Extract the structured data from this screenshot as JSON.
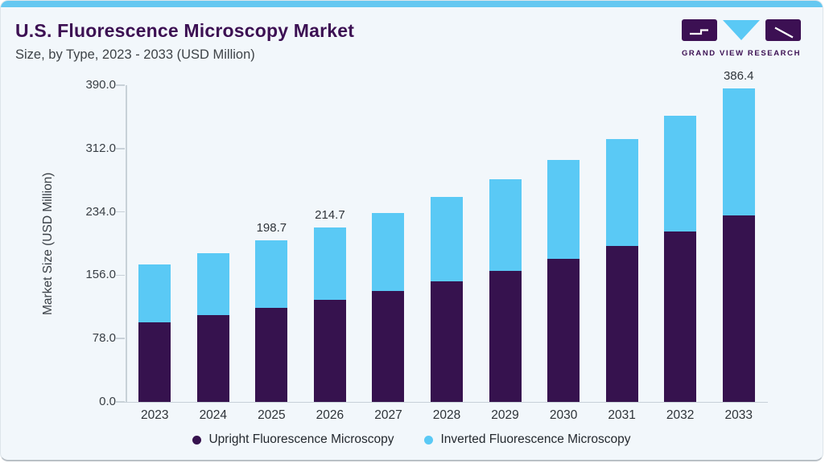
{
  "header": {
    "title": "U.S. Fluorescence Microscopy Market",
    "subtitle": "Size, by Type, 2023 - 2033 (USD Million)",
    "logo_text": "GRAND VIEW RESEARCH"
  },
  "colors": {
    "card_bg": "#f2f7fb",
    "top_accent": "#65c8f1",
    "title_text": "#3c1053",
    "subtitle_text": "#3e4347",
    "upright": "#36124e",
    "inverted": "#5ac9f5",
    "axis_line": "#c8d1d8",
    "tick_text": "#383e44",
    "logo_purple": "#3c1053",
    "logo_blue": "#5ac9f5"
  },
  "chart_data": {
    "type": "bar",
    "stacked": true,
    "title": "U.S. Fluorescence Microscopy Market Size, by Type, 2023 - 2033 (USD Million)",
    "categories": [
      "2023",
      "2024",
      "2025",
      "2026",
      "2027",
      "2028",
      "2029",
      "2030",
      "2031",
      "2032",
      "2033"
    ],
    "series": [
      {
        "name": "Upright Fluorescence Microscopy",
        "color": "#36124e",
        "values": [
          97.9,
          106.6,
          115.6,
          125.9,
          136.9,
          148.4,
          161.3,
          176.0,
          192.0,
          209.8,
          229.3
        ]
      },
      {
        "name": "Inverted Fluorescence Microscopy",
        "color": "#5ac9f5",
        "values": [
          71.6,
          76.6,
          83.1,
          88.8,
          95.3,
          104.0,
          112.5,
          121.9,
          131.5,
          142.8,
          157.1
        ]
      }
    ],
    "totals": [
      169.5,
      183.2,
      198.7,
      214.7,
      232.2,
      252.4,
      273.8,
      297.9,
      323.5,
      352.6,
      386.4
    ],
    "data_labels": {
      "2025": "198.7",
      "2026": "214.7",
      "2033": "386.4"
    },
    "xlabel": "",
    "ylabel": "Market Size (USD Million)",
    "yticks": [
      0,
      78,
      156,
      234,
      312,
      390
    ],
    "ylim": [
      0,
      390
    ],
    "grid": false,
    "legend_position": "bottom"
  }
}
